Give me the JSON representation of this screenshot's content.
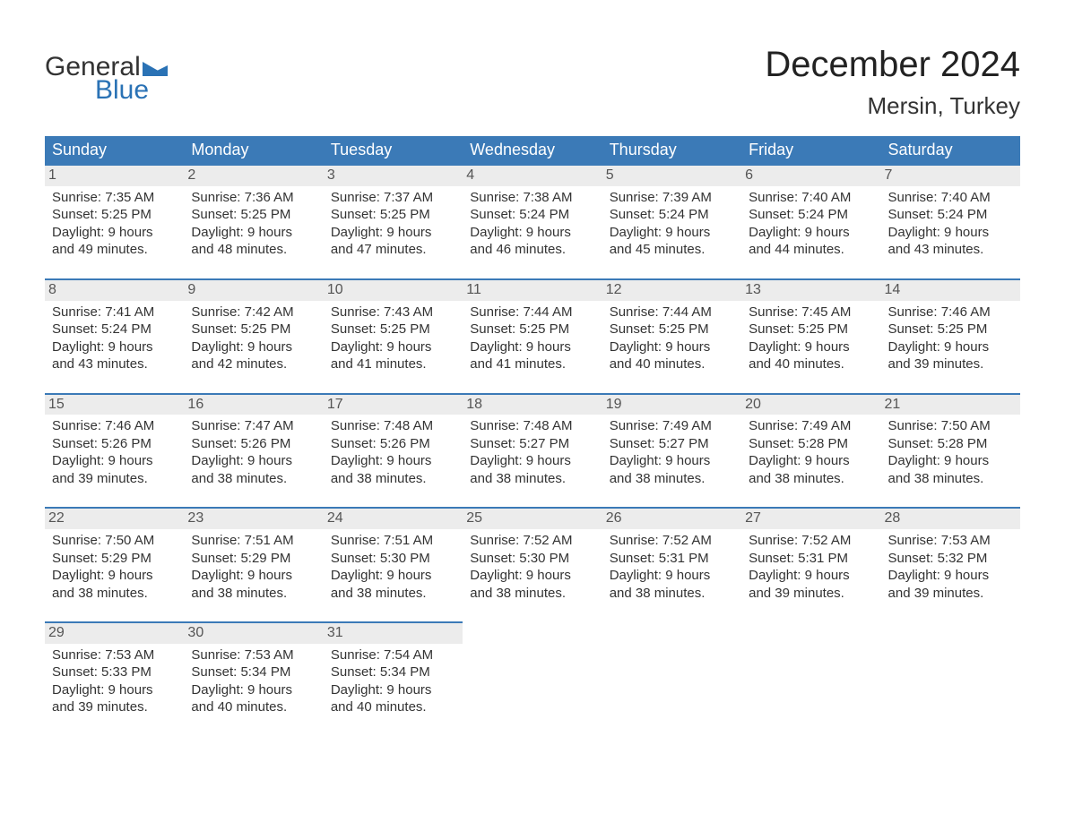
{
  "brand": {
    "word1": "General",
    "word2": "Blue",
    "tri_color": "#2a72b5"
  },
  "title": "December 2024",
  "location": "Mersin, Turkey",
  "colors": {
    "header_bg": "#3b7ab7",
    "header_text": "#ffffff",
    "daynum_bg": "#ececec",
    "daynum_border": "#3b7ab7",
    "body_text": "#333333"
  },
  "day_names": [
    "Sunday",
    "Monday",
    "Tuesday",
    "Wednesday",
    "Thursday",
    "Friday",
    "Saturday"
  ],
  "labels": {
    "sunrise": "Sunrise:",
    "sunset": "Sunset:",
    "daylight": "Daylight:"
  },
  "weeks": [
    [
      {
        "n": "1",
        "sr": "7:35 AM",
        "ss": "5:25 PM",
        "dl": "9 hours and 49 minutes."
      },
      {
        "n": "2",
        "sr": "7:36 AM",
        "ss": "5:25 PM",
        "dl": "9 hours and 48 minutes."
      },
      {
        "n": "3",
        "sr": "7:37 AM",
        "ss": "5:25 PM",
        "dl": "9 hours and 47 minutes."
      },
      {
        "n": "4",
        "sr": "7:38 AM",
        "ss": "5:24 PM",
        "dl": "9 hours and 46 minutes."
      },
      {
        "n": "5",
        "sr": "7:39 AM",
        "ss": "5:24 PM",
        "dl": "9 hours and 45 minutes."
      },
      {
        "n": "6",
        "sr": "7:40 AM",
        "ss": "5:24 PM",
        "dl": "9 hours and 44 minutes."
      },
      {
        "n": "7",
        "sr": "7:40 AM",
        "ss": "5:24 PM",
        "dl": "9 hours and 43 minutes."
      }
    ],
    [
      {
        "n": "8",
        "sr": "7:41 AM",
        "ss": "5:24 PM",
        "dl": "9 hours and 43 minutes."
      },
      {
        "n": "9",
        "sr": "7:42 AM",
        "ss": "5:25 PM",
        "dl": "9 hours and 42 minutes."
      },
      {
        "n": "10",
        "sr": "7:43 AM",
        "ss": "5:25 PM",
        "dl": "9 hours and 41 minutes."
      },
      {
        "n": "11",
        "sr": "7:44 AM",
        "ss": "5:25 PM",
        "dl": "9 hours and 41 minutes."
      },
      {
        "n": "12",
        "sr": "7:44 AM",
        "ss": "5:25 PM",
        "dl": "9 hours and 40 minutes."
      },
      {
        "n": "13",
        "sr": "7:45 AM",
        "ss": "5:25 PM",
        "dl": "9 hours and 40 minutes."
      },
      {
        "n": "14",
        "sr": "7:46 AM",
        "ss": "5:25 PM",
        "dl": "9 hours and 39 minutes."
      }
    ],
    [
      {
        "n": "15",
        "sr": "7:46 AM",
        "ss": "5:26 PM",
        "dl": "9 hours and 39 minutes."
      },
      {
        "n": "16",
        "sr": "7:47 AM",
        "ss": "5:26 PM",
        "dl": "9 hours and 38 minutes."
      },
      {
        "n": "17",
        "sr": "7:48 AM",
        "ss": "5:26 PM",
        "dl": "9 hours and 38 minutes."
      },
      {
        "n": "18",
        "sr": "7:48 AM",
        "ss": "5:27 PM",
        "dl": "9 hours and 38 minutes."
      },
      {
        "n": "19",
        "sr": "7:49 AM",
        "ss": "5:27 PM",
        "dl": "9 hours and 38 minutes."
      },
      {
        "n": "20",
        "sr": "7:49 AM",
        "ss": "5:28 PM",
        "dl": "9 hours and 38 minutes."
      },
      {
        "n": "21",
        "sr": "7:50 AM",
        "ss": "5:28 PM",
        "dl": "9 hours and 38 minutes."
      }
    ],
    [
      {
        "n": "22",
        "sr": "7:50 AM",
        "ss": "5:29 PM",
        "dl": "9 hours and 38 minutes."
      },
      {
        "n": "23",
        "sr": "7:51 AM",
        "ss": "5:29 PM",
        "dl": "9 hours and 38 minutes."
      },
      {
        "n": "24",
        "sr": "7:51 AM",
        "ss": "5:30 PM",
        "dl": "9 hours and 38 minutes."
      },
      {
        "n": "25",
        "sr": "7:52 AM",
        "ss": "5:30 PM",
        "dl": "9 hours and 38 minutes."
      },
      {
        "n": "26",
        "sr": "7:52 AM",
        "ss": "5:31 PM",
        "dl": "9 hours and 38 minutes."
      },
      {
        "n": "27",
        "sr": "7:52 AM",
        "ss": "5:31 PM",
        "dl": "9 hours and 39 minutes."
      },
      {
        "n": "28",
        "sr": "7:53 AM",
        "ss": "5:32 PM",
        "dl": "9 hours and 39 minutes."
      }
    ],
    [
      {
        "n": "29",
        "sr": "7:53 AM",
        "ss": "5:33 PM",
        "dl": "9 hours and 39 minutes."
      },
      {
        "n": "30",
        "sr": "7:53 AM",
        "ss": "5:34 PM",
        "dl": "9 hours and 40 minutes."
      },
      {
        "n": "31",
        "sr": "7:54 AM",
        "ss": "5:34 PM",
        "dl": "9 hours and 40 minutes."
      },
      null,
      null,
      null,
      null
    ]
  ]
}
